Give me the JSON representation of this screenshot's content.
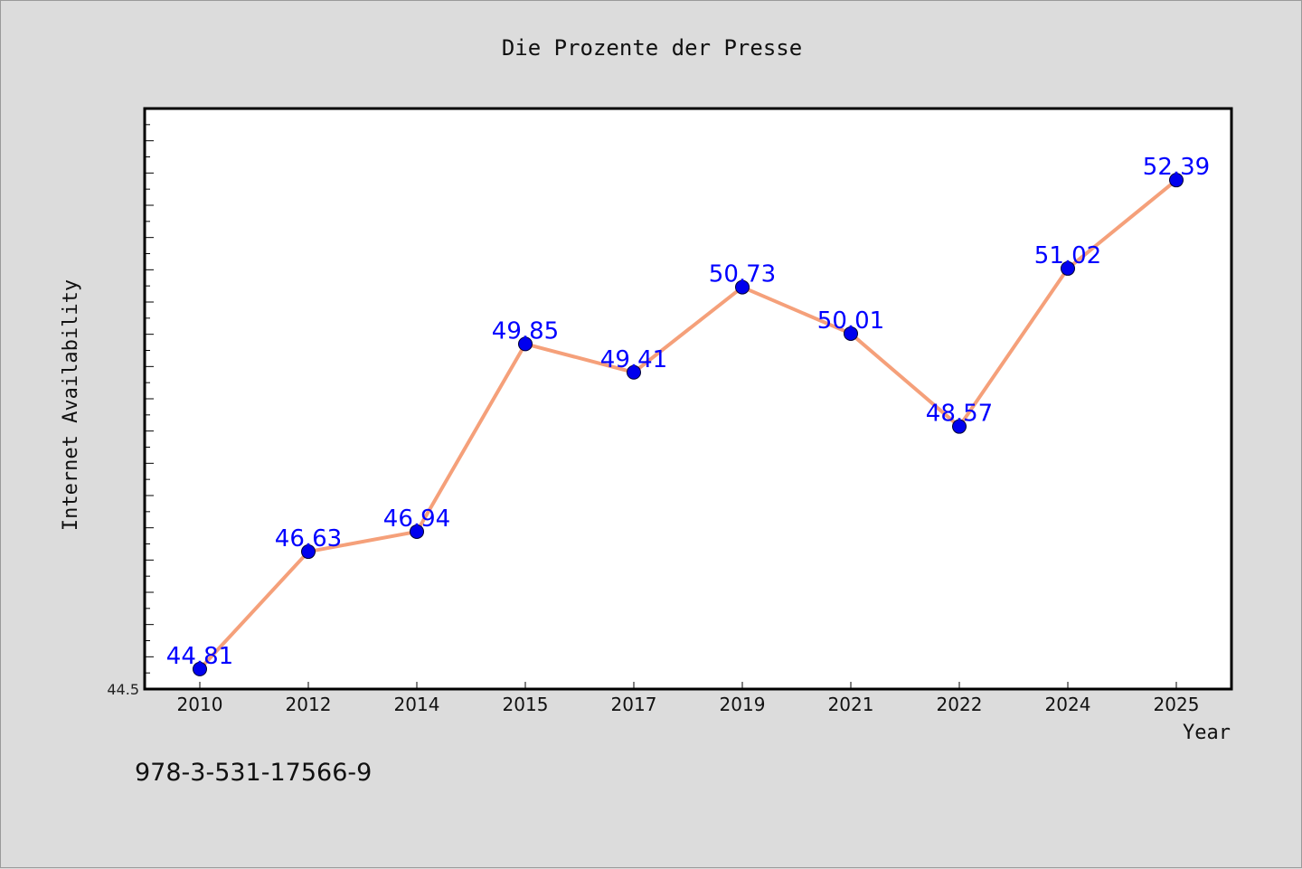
{
  "chart_data": {
    "type": "line",
    "title": "Die Prozente der Presse",
    "xlabel": "Year",
    "ylabel": "Internet Availability",
    "categories": [
      "2010",
      "2012",
      "2014",
      "2015",
      "2017",
      "2019",
      "2021",
      "2022",
      "2024",
      "2025"
    ],
    "series": [
      {
        "values": [
          44.81,
          46.63,
          46.94,
          49.85,
          49.41,
          50.73,
          50.01,
          48.57,
          51.02,
          52.39
        ],
        "labels": [
          "44.81",
          "46.63",
          "46.94",
          "49.85",
          "49.41",
          "50.73",
          "50.01",
          "48.57",
          "51.02",
          "52.39"
        ],
        "line_color": "#f5a07a",
        "marker_color": "#0000ee",
        "label_color": "#0000ff"
      }
    ],
    "ylim": [
      44.5,
      53.5
    ],
    "y_tick_labels": [
      "44.5"
    ],
    "grid": false,
    "legend": "none"
  },
  "footer": {
    "isbn": "978-3-531-17566-9"
  }
}
